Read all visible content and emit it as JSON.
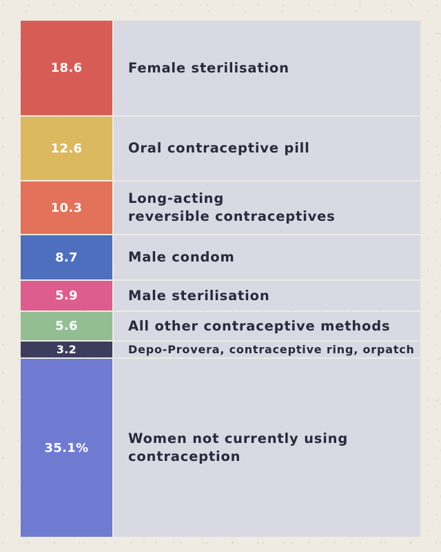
{
  "chart_data": {
    "type": "bar",
    "title": "",
    "categories": [
      "Female sterilisation",
      "Oral contraceptive pill",
      "Long-acting\nreversible contraceptives",
      "Male condom",
      "Male sterilisation",
      "All other contraceptive methods",
      "Depo-Provera, contraceptive ring, orpatch",
      "Women not currently using\ncontraception"
    ],
    "values": [
      18.6,
      12.6,
      10.3,
      8.7,
      5.9,
      5.6,
      3.2,
      35.1
    ],
    "value_labels": [
      "18.6",
      "12.6",
      "10.3",
      "8.7",
      "5.9",
      "5.6",
      "3.2",
      "35.1%"
    ],
    "colors": [
      "#d85c56",
      "#dcb95f",
      "#e27259",
      "#4d6fbd",
      "#de5d8f",
      "#93be94",
      "#3c3c5c",
      "#6e7bd0"
    ],
    "unit": "%",
    "xlabel": "",
    "ylabel": ""
  }
}
